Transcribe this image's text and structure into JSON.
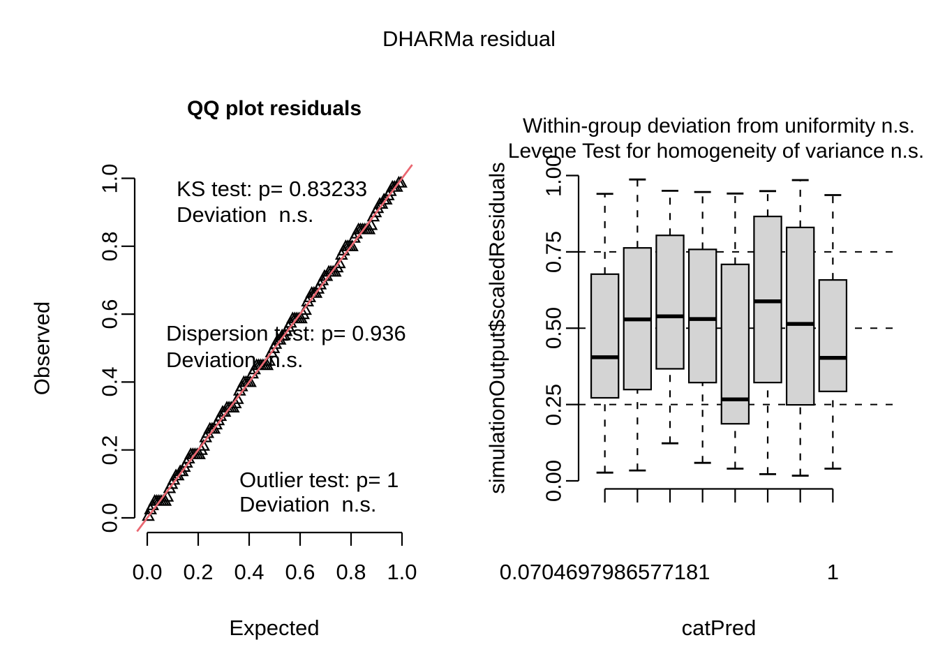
{
  "main_title": "DHARMa residual",
  "colors": {
    "ref_line": "#EA6771",
    "box_fill": "#D4D4D4",
    "text": "#000000"
  },
  "chart_data": [
    {
      "type": "scatter",
      "id": "qq-plot",
      "title": "QQ plot residuals",
      "xlabel": "Expected",
      "ylabel": "Observed",
      "xlim": [
        0,
        1
      ],
      "ylim": [
        0,
        1
      ],
      "grid": false,
      "marker": "open-triangle-up",
      "xticks": {
        "values": [
          0,
          0.2,
          0.4,
          0.6,
          0.8,
          1
        ],
        "labels": [
          "0.0",
          "0.2",
          "0.4",
          "0.6",
          "0.8",
          "1.0"
        ]
      },
      "yticks": {
        "values": [
          0,
          0.2,
          0.4,
          0.6,
          0.8,
          1
        ],
        "labels": [
          "0.0",
          "0.2",
          "0.4",
          "0.6",
          "0.8",
          "1.0"
        ]
      },
      "ref_line": {
        "type": "identity",
        "extent": [
          -0.04,
          1.04
        ]
      },
      "annotations": {
        "ks": [
          "KS test: p= 0.83233",
          "Deviation  n.s."
        ],
        "dispersion": [
          "Dispersion test: p= 0.936",
          "Deviation  n.s."
        ],
        "outlier": [
          "Outlier test: p= 1",
          "Deviation  n.s."
        ]
      },
      "points": [
        [
          0.0042,
          0.006
        ],
        [
          0.0125,
          0.025
        ],
        [
          0.0208,
          0.0375
        ],
        [
          0.0292,
          0.05
        ],
        [
          0.0375,
          0.05
        ],
        [
          0.0458,
          0.05
        ],
        [
          0.0542,
          0.05
        ],
        [
          0.0625,
          0.05
        ],
        [
          0.0708,
          0.05
        ],
        [
          0.0792,
          0.0625
        ],
        [
          0.0875,
          0.0875
        ],
        [
          0.0958,
          0.1
        ],
        [
          0.1042,
          0.1125
        ],
        [
          0.1125,
          0.125
        ],
        [
          0.1208,
          0.125
        ],
        [
          0.1292,
          0.1375
        ],
        [
          0.1375,
          0.1375
        ],
        [
          0.1458,
          0.15
        ],
        [
          0.1542,
          0.1625
        ],
        [
          0.1625,
          0.175
        ],
        [
          0.1708,
          0.1875
        ],
        [
          0.1792,
          0.1875
        ],
        [
          0.1875,
          0.1875
        ],
        [
          0.1958,
          0.1875
        ],
        [
          0.2042,
          0.1875
        ],
        [
          0.2125,
          0.2
        ],
        [
          0.2208,
          0.2125
        ],
        [
          0.2292,
          0.2375
        ],
        [
          0.2375,
          0.25
        ],
        [
          0.2458,
          0.2625
        ],
        [
          0.2542,
          0.2625
        ],
        [
          0.2625,
          0.2625
        ],
        [
          0.2708,
          0.275
        ],
        [
          0.2792,
          0.2875
        ],
        [
          0.2875,
          0.3
        ],
        [
          0.2958,
          0.3125
        ],
        [
          0.3042,
          0.3125
        ],
        [
          0.3125,
          0.325
        ],
        [
          0.3208,
          0.325
        ],
        [
          0.3292,
          0.325
        ],
        [
          0.3375,
          0.325
        ],
        [
          0.3458,
          0.3375
        ],
        [
          0.3542,
          0.35
        ],
        [
          0.3625,
          0.375
        ],
        [
          0.3708,
          0.3875
        ],
        [
          0.3792,
          0.4
        ],
        [
          0.3875,
          0.4
        ],
        [
          0.3958,
          0.4
        ],
        [
          0.4042,
          0.4
        ],
        [
          0.4125,
          0.425
        ],
        [
          0.4208,
          0.4375
        ],
        [
          0.4292,
          0.45
        ],
        [
          0.4375,
          0.45
        ],
        [
          0.4458,
          0.45
        ],
        [
          0.4542,
          0.45
        ],
        [
          0.4625,
          0.45
        ],
        [
          0.4708,
          0.45
        ],
        [
          0.4792,
          0.4625
        ],
        [
          0.4875,
          0.4875
        ],
        [
          0.4958,
          0.5
        ],
        [
          0.5042,
          0.5125
        ],
        [
          0.5125,
          0.525
        ],
        [
          0.5208,
          0.525
        ],
        [
          0.5292,
          0.5375
        ],
        [
          0.5375,
          0.5375
        ],
        [
          0.5458,
          0.55
        ],
        [
          0.5542,
          0.5625
        ],
        [
          0.5625,
          0.575
        ],
        [
          0.5708,
          0.5875
        ],
        [
          0.5792,
          0.5875
        ],
        [
          0.5875,
          0.5875
        ],
        [
          0.5958,
          0.5875
        ],
        [
          0.6042,
          0.5875
        ],
        [
          0.6125,
          0.6
        ],
        [
          0.6208,
          0.6125
        ],
        [
          0.6292,
          0.6375
        ],
        [
          0.6375,
          0.65
        ],
        [
          0.6458,
          0.6625
        ],
        [
          0.6542,
          0.6625
        ],
        [
          0.6625,
          0.6625
        ],
        [
          0.6708,
          0.675
        ],
        [
          0.6792,
          0.6875
        ],
        [
          0.6875,
          0.7
        ],
        [
          0.6958,
          0.7125
        ],
        [
          0.7042,
          0.7125
        ],
        [
          0.7125,
          0.725
        ],
        [
          0.7208,
          0.725
        ],
        [
          0.7292,
          0.725
        ],
        [
          0.7375,
          0.725
        ],
        [
          0.7458,
          0.7375
        ],
        [
          0.7542,
          0.75
        ],
        [
          0.7625,
          0.775
        ],
        [
          0.7708,
          0.7875
        ],
        [
          0.7792,
          0.8
        ],
        [
          0.7875,
          0.8
        ],
        [
          0.7958,
          0.8
        ],
        [
          0.8042,
          0.8
        ],
        [
          0.8125,
          0.825
        ],
        [
          0.8208,
          0.8375
        ],
        [
          0.8292,
          0.85
        ],
        [
          0.8375,
          0.85
        ],
        [
          0.8458,
          0.85
        ],
        [
          0.8542,
          0.85
        ],
        [
          0.8625,
          0.85
        ],
        [
          0.8708,
          0.85
        ],
        [
          0.8792,
          0.8625
        ],
        [
          0.8875,
          0.8875
        ],
        [
          0.8958,
          0.9
        ],
        [
          0.9042,
          0.9125
        ],
        [
          0.9125,
          0.925
        ],
        [
          0.9208,
          0.925
        ],
        [
          0.9292,
          0.9375
        ],
        [
          0.9375,
          0.9375
        ],
        [
          0.9458,
          0.95
        ],
        [
          0.9542,
          0.9625
        ],
        [
          0.9625,
          0.975
        ],
        [
          0.9708,
          0.975
        ],
        [
          0.9792,
          0.975
        ],
        [
          0.9875,
          0.9875
        ],
        [
          0.9958,
          0.9875
        ]
      ]
    },
    {
      "type": "boxplot",
      "id": "within-group-boxplot",
      "title_lines": [
        "Within-group deviation from uniformity n.s.",
        "Levene Test for homogeneity of variance n.s."
      ],
      "xlabel": "catPred",
      "ylabel": "simulationOutput$scaledResiduals",
      "ylim": [
        0,
        1
      ],
      "yticks": {
        "values": [
          0,
          0.25,
          0.5,
          0.75,
          1
        ],
        "labels": [
          "0.00",
          "0.25",
          "0.50",
          "0.75",
          "1.00"
        ]
      },
      "xtick_labels": [
        "0.0704697986577181",
        "",
        "",
        "",
        "",
        "",
        "",
        "1"
      ],
      "hlines": [
        0.25,
        0.5,
        0.75
      ],
      "boxes": [
        {
          "lo": 0.027,
          "q1": 0.272,
          "med": 0.405,
          "q3": 0.677,
          "hi": 0.94
        },
        {
          "lo": 0.034,
          "q1": 0.299,
          "med": 0.529,
          "q3": 0.763,
          "hi": 0.987
        },
        {
          "lo": 0.123,
          "q1": 0.367,
          "med": 0.539,
          "q3": 0.804,
          "hi": 0.95
        },
        {
          "lo": 0.059,
          "q1": 0.322,
          "med": 0.53,
          "q3": 0.758,
          "hi": 0.946
        },
        {
          "lo": 0.04,
          "q1": 0.187,
          "med": 0.267,
          "q3": 0.709,
          "hi": 0.941
        },
        {
          "lo": 0.022,
          "q1": 0.322,
          "med": 0.588,
          "q3": 0.866,
          "hi": 0.949
        },
        {
          "lo": 0.017,
          "q1": 0.249,
          "med": 0.514,
          "q3": 0.83,
          "hi": 0.985
        },
        {
          "lo": 0.04,
          "q1": 0.293,
          "med": 0.403,
          "q3": 0.658,
          "hi": 0.936
        }
      ]
    }
  ]
}
